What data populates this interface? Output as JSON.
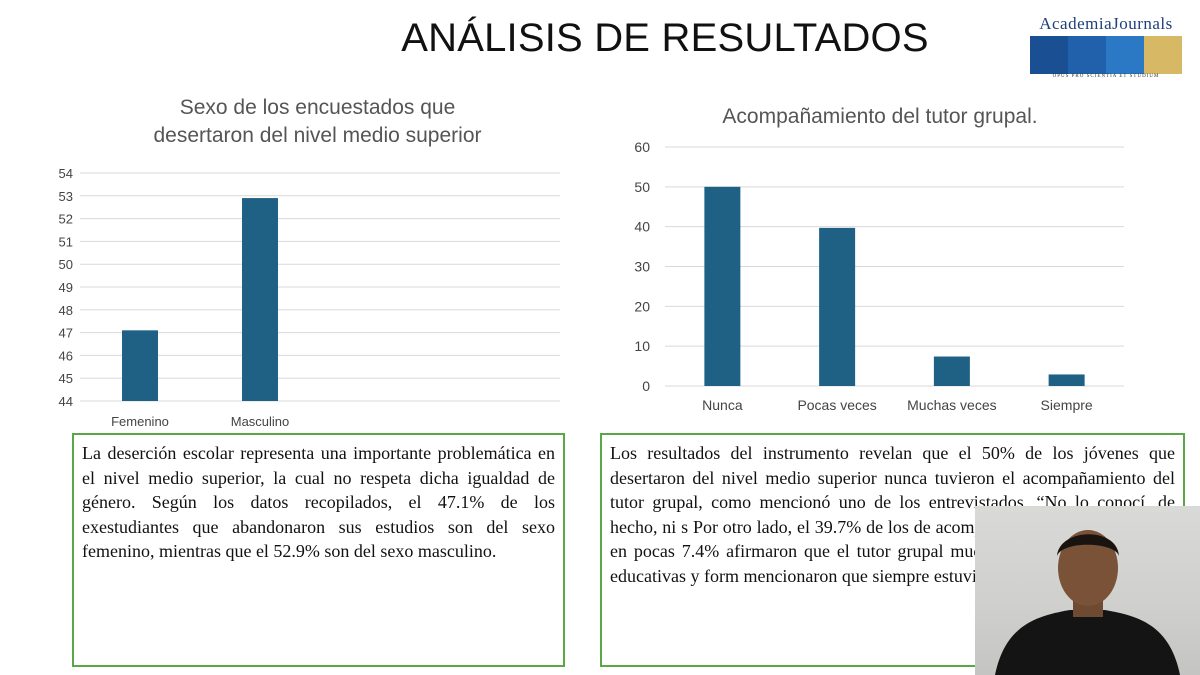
{
  "slide": {
    "title": "ANÁLISIS DE RESULTADOS"
  },
  "logo": {
    "name": "AcademiaJournals",
    "tagline": "OPUS PRO SCIENTIA ET STUDIUM",
    "colors": [
      "#1b4f93",
      "#2161ab",
      "#2b78c4",
      "#d7b965"
    ]
  },
  "colors": {
    "bar": "#1f6185",
    "grid": "#d9d9d9",
    "textbox_border": "#5aa845"
  },
  "chart_data": [
    {
      "type": "bar",
      "title_lines": [
        "Sexo de los encuestados que",
        "desertaron del nivel medio superior"
      ],
      "categories": [
        "Femenino",
        "Masculino"
      ],
      "values": [
        47.1,
        52.9
      ],
      "y_ticks": [
        "54",
        "53",
        "52",
        "51",
        "50",
        "49",
        "48",
        "47",
        "46",
        "45",
        "44"
      ],
      "ylim": [
        44,
        54
      ],
      "grid": true,
      "legend": "none"
    },
    {
      "type": "bar",
      "title": "Acompañamiento del tutor grupal.",
      "categories": [
        "Nunca",
        "Pocas veces",
        "Muchas veces",
        "Siempre"
      ],
      "values": [
        50,
        39.7,
        7.4,
        2.9
      ],
      "y_ticks": [
        "60",
        "50",
        "40",
        "30",
        "20",
        "10",
        "0"
      ],
      "ylim": [
        0,
        60
      ],
      "grid": true,
      "legend": "none"
    }
  ],
  "textbox_left": "La deserción escolar representa una importante problemática en el nivel medio superior, la cual no respeta dicha igualdad de género. Según los datos recopilados, el 47.1% de los exestudiantes que abandonaron sus estudios son del sexo femenino, mientras que el 52.9% son del sexo masculino.",
  "textbox_right": "Los resultados del instrumento revelan que el 50% de los jóvenes que desertaron del nivel medio superior nunca tuvieron el acompañamiento del tutor grupal, como mencionó uno de los entrevistados, “No lo conocí, de hecho, ni s Por otro lado, el 39.7% de los de acompañamiento del tutor grupal en pocas 7.4% afirmaron que el tutor grupal muchas v diversas actividades educativas y form mencionaron que siempre estuvieron acompan"
}
